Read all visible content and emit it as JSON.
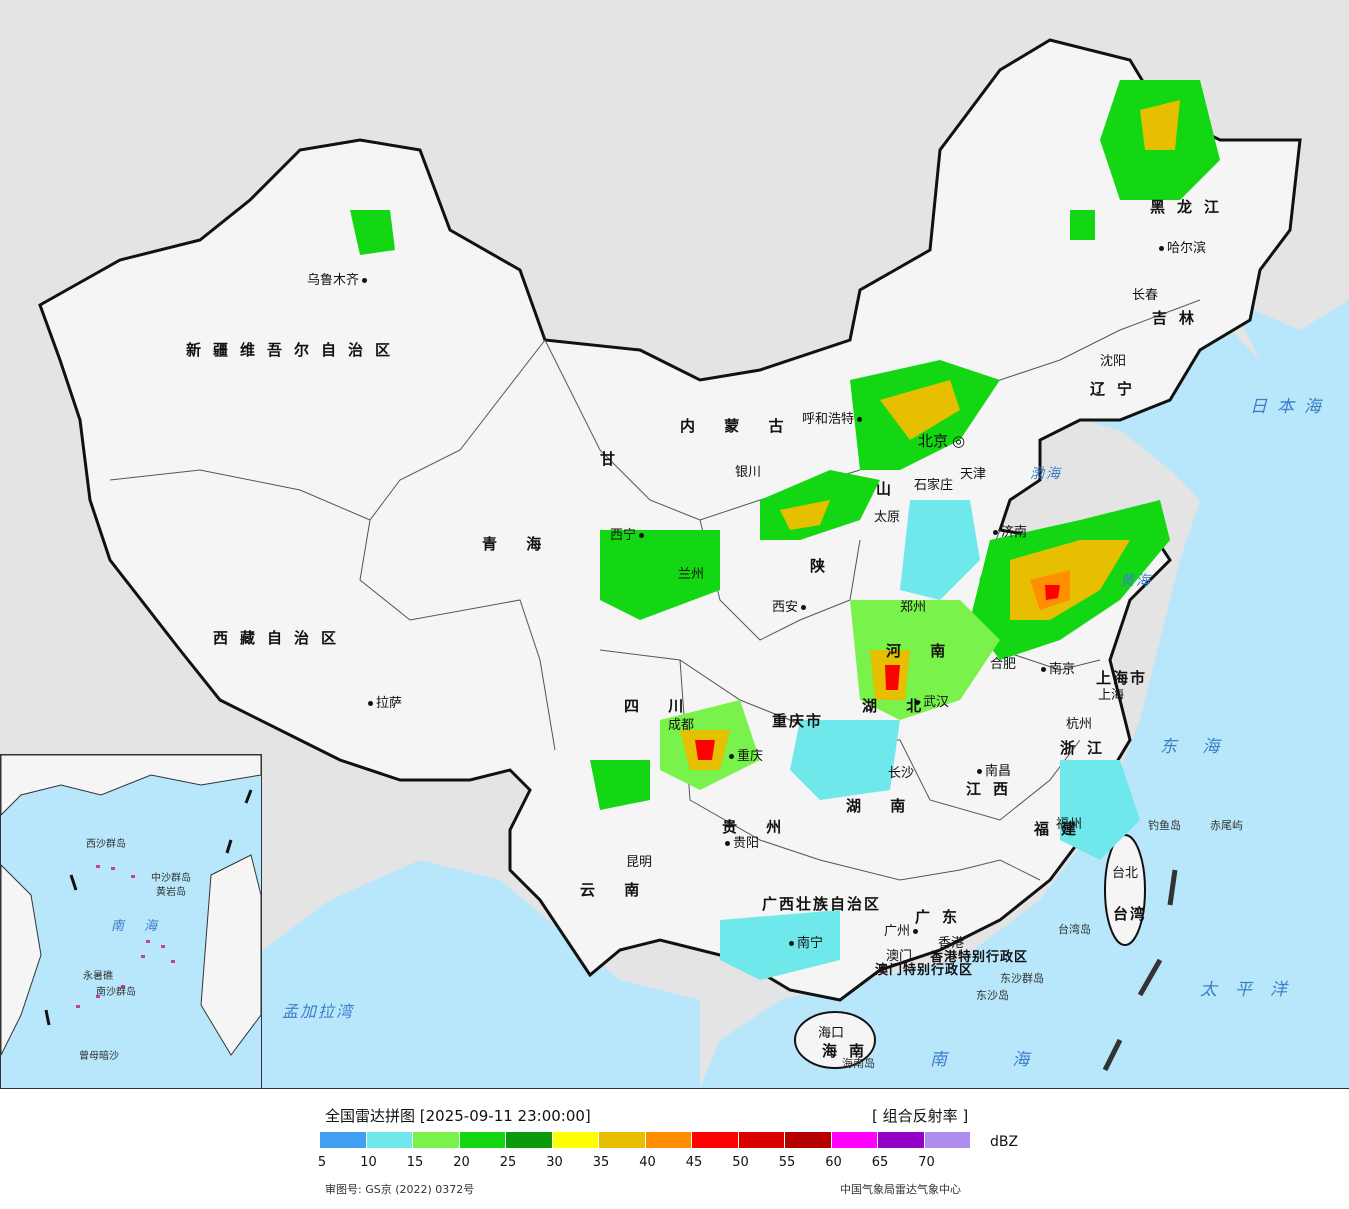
{
  "map": {
    "provinces": [
      {
        "id": "xinjiang",
        "label": "新疆维吾尔自治区"
      },
      {
        "id": "xizang",
        "label": "西藏自治区"
      },
      {
        "id": "qinghai",
        "label": "青  海"
      },
      {
        "id": "neimenggu",
        "label": "内  蒙  古"
      },
      {
        "id": "heilongjiang",
        "label": "黑龙江"
      },
      {
        "id": "jilin",
        "label": "吉林"
      },
      {
        "id": "liaoning",
        "label": "辽宁"
      },
      {
        "id": "gansu",
        "label": "甘"
      },
      {
        "id": "shaanxi",
        "label": "陕"
      },
      {
        "id": "shanxi",
        "label": "山"
      },
      {
        "id": "sichuan",
        "label": "四  川"
      },
      {
        "id": "yunnan",
        "label": "云  南"
      },
      {
        "id": "guizhou",
        "label": "贵  州"
      },
      {
        "id": "hunan",
        "label": "湖  南"
      },
      {
        "id": "hubei",
        "label": "湖  北"
      },
      {
        "id": "henan",
        "label": "河  南"
      },
      {
        "id": "jiangxi",
        "label": "江西"
      },
      {
        "id": "fujian",
        "label": "福建"
      },
      {
        "id": "zhejiang",
        "label": "浙江"
      },
      {
        "id": "guangxi",
        "label": "广西壮族自治区"
      },
      {
        "id": "guangdong",
        "label": "广东"
      },
      {
        "id": "hainan",
        "label": "海南"
      },
      {
        "id": "shanghai",
        "label": "上海市"
      },
      {
        "id": "chongqing",
        "label": "重庆市"
      },
      {
        "id": "hk",
        "label": "香港特别行政区"
      },
      {
        "id": "macau",
        "label": "澳门特别行政区"
      },
      {
        "id": "taiwan",
        "label": "台湾"
      }
    ],
    "cities": [
      {
        "id": "urumqi",
        "label": "乌鲁木齐"
      },
      {
        "id": "lhasa",
        "label": "拉萨"
      },
      {
        "id": "xining",
        "label": "西宁"
      },
      {
        "id": "lanzhou",
        "label": "兰州"
      },
      {
        "id": "yinchuan",
        "label": "银川"
      },
      {
        "id": "hohhot",
        "label": "呼和浩特"
      },
      {
        "id": "beijing",
        "label": "北京"
      },
      {
        "id": "tianjin",
        "label": "天津"
      },
      {
        "id": "shijiazhuang",
        "label": "石家庄"
      },
      {
        "id": "taiyuan",
        "label": "太原"
      },
      {
        "id": "jinan",
        "label": "济南"
      },
      {
        "id": "zhengzhou",
        "label": "郑州"
      },
      {
        "id": "xian",
        "label": "西安"
      },
      {
        "id": "chengdu",
        "label": "成都"
      },
      {
        "id": "chongqing_c",
        "label": "重庆"
      },
      {
        "id": "wuhan",
        "label": "武汉"
      },
      {
        "id": "hefei",
        "label": "合肥"
      },
      {
        "id": "nanjing",
        "label": "南京"
      },
      {
        "id": "shanghai_c",
        "label": "上海"
      },
      {
        "id": "hangzhou",
        "label": "杭州"
      },
      {
        "id": "nanchang",
        "label": "南昌"
      },
      {
        "id": "changsha",
        "label": "长沙"
      },
      {
        "id": "guiyang",
        "label": "贵阳"
      },
      {
        "id": "kunming",
        "label": "昆明"
      },
      {
        "id": "nanning",
        "label": "南宁"
      },
      {
        "id": "guangzhou",
        "label": "广州"
      },
      {
        "id": "hongkong",
        "label": "香港"
      },
      {
        "id": "macau_c",
        "label": "澳门"
      },
      {
        "id": "haikou",
        "label": "海口"
      },
      {
        "id": "fuzhou",
        "label": "福州"
      },
      {
        "id": "taibei",
        "label": "台北"
      },
      {
        "id": "harbin",
        "label": "哈尔滨"
      },
      {
        "id": "changchun",
        "label": "长春"
      },
      {
        "id": "shenyang",
        "label": "沈阳"
      }
    ],
    "seas": [
      {
        "id": "japan_sea",
        "label": "日本海"
      },
      {
        "id": "donghai",
        "label": "东  海"
      },
      {
        "id": "taipingyang",
        "label": "太平洋"
      },
      {
        "id": "nanhai",
        "label": "南  海"
      },
      {
        "id": "bohai",
        "label": "渤海"
      },
      {
        "id": "huanghai",
        "label": "黄海"
      },
      {
        "id": "bengal",
        "label": "孟加拉湾"
      }
    ],
    "islands": [
      {
        "id": "diaoyu",
        "label": "钓鱼岛"
      },
      {
        "id": "chiwei",
        "label": "赤尾屿"
      },
      {
        "id": "taiwan_is",
        "label": "台湾岛"
      },
      {
        "id": "dongsha",
        "label": "东沙群岛"
      },
      {
        "id": "dongsha2",
        "label": "东沙岛"
      },
      {
        "id": "hainan_is",
        "label": "海南岛"
      }
    ],
    "inset_labels": [
      {
        "id": "i_nanhai",
        "label": "南  海"
      },
      {
        "id": "i_zhongsha",
        "label": "中沙群岛"
      },
      {
        "id": "i_huangyan",
        "label": "黄岩岛"
      },
      {
        "id": "i_nansha",
        "label": "南沙群岛"
      },
      {
        "id": "i_zengmu",
        "label": "曾母暗沙"
      },
      {
        "id": "i_xisha",
        "label": "西沙群岛"
      },
      {
        "id": "i_yongxing",
        "label": "永暑礁"
      }
    ]
  },
  "legend": {
    "title": "全国雷达拼图 [2025-09-11 23:00:00]",
    "product": "[ 组合反射率 ]",
    "unit": "dBZ",
    "colors": [
      "#3f9ff0",
      "#6ee8ea",
      "#79f24c",
      "#12d712",
      "#0a9a0a",
      "#ffff00",
      "#e6c000",
      "#ff8e00",
      "#ff0000",
      "#d80000",
      "#b60000",
      "#ff00ff",
      "#9400c6",
      "#ae8ff0"
    ],
    "ticks": [
      "5",
      "10",
      "15",
      "20",
      "25",
      "30",
      "35",
      "40",
      "45",
      "50",
      "55",
      "60",
      "65",
      "70"
    ],
    "review_number": "审图号: GS京 (2022) 0372号",
    "source": "中国气象局雷达气象中心"
  }
}
